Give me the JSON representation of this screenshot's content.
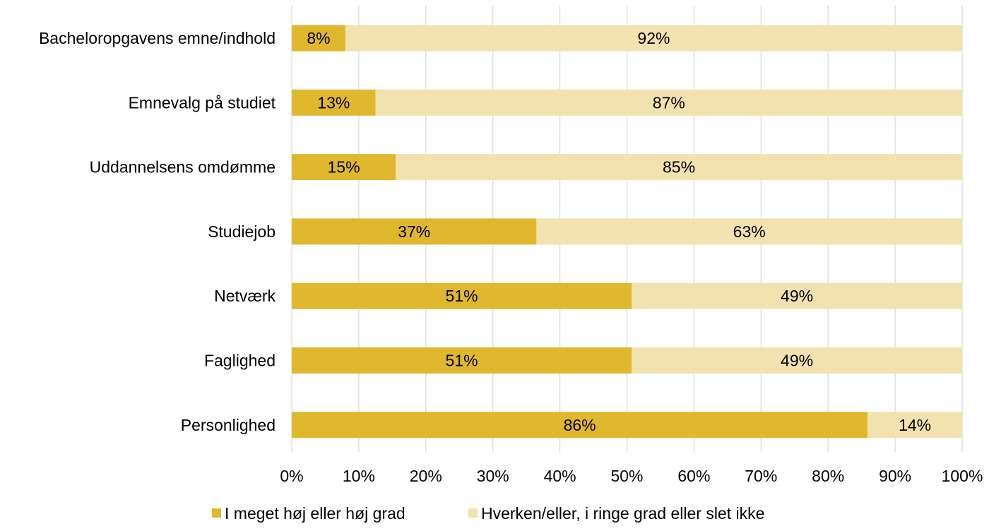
{
  "chart_data": {
    "type": "bar",
    "orientation": "horizontal",
    "stacked": true,
    "percent_stacked": true,
    "categories": [
      "Bacheloropgavens emne/indhold",
      "Emnevalg på studiet",
      "Uddannelsens omdømme",
      "Studiejob",
      "Netværk",
      "Faglighed",
      "Personlighed"
    ],
    "series": [
      {
        "name": "I meget høj eller høj grad",
        "values": [
          8,
          13,
          15,
          37,
          51,
          51,
          86
        ],
        "plot_values": [
          8,
          12.5,
          15.5,
          36.5,
          50.7,
          50.7,
          85.9
        ],
        "labels": [
          "8%",
          "13%",
          "15%",
          "37%",
          "51%",
          "51%",
          "86%"
        ],
        "color": "#E0B82E"
      },
      {
        "name": "Hverken/eller, i ringe grad eller slet ikke",
        "values": [
          92,
          87,
          85,
          63,
          49,
          49,
          14
        ],
        "labels": [
          "92%",
          "87%",
          "85%",
          "63%",
          "49%",
          "49%",
          "14%"
        ],
        "color": "#F2E2AF"
      }
    ],
    "x_ticks": [
      "0%",
      "10%",
      "20%",
      "30%",
      "40%",
      "50%",
      "60%",
      "70%",
      "80%",
      "90%",
      "100%"
    ],
    "xlim": [
      0,
      100
    ],
    "grid": "vertical",
    "gridline_color": "#D9D9D9",
    "legend_position": "bottom",
    "title": "",
    "xlabel": "",
    "ylabel": ""
  }
}
